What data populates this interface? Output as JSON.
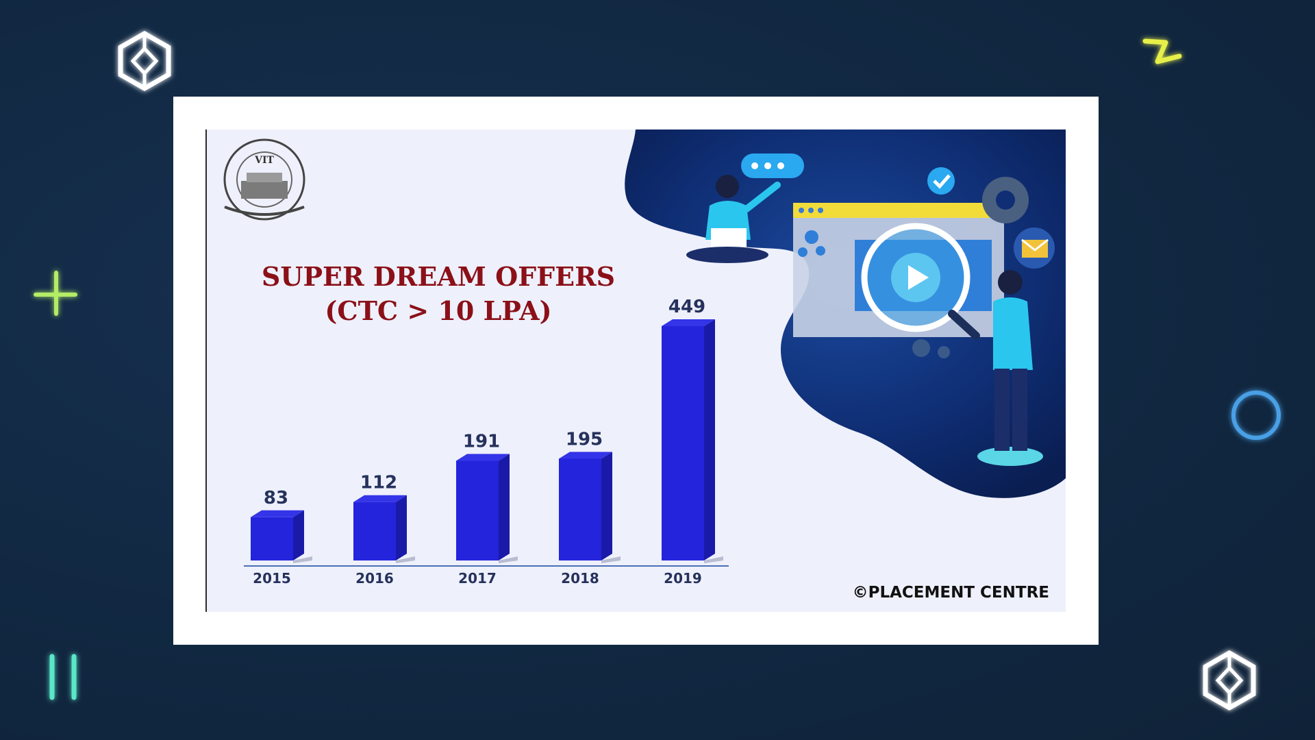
{
  "slide": {
    "logo_text": "VIT",
    "copyright": "©PLACEMENT CENTRE"
  },
  "chart_data": {
    "type": "bar",
    "title": "SUPER DREAM OFFERS",
    "subtitle": "(CTC > 10 LPA)",
    "categories": [
      "2015",
      "2016",
      "2017",
      "2018",
      "2019"
    ],
    "values": [
      83,
      112,
      191,
      195,
      449
    ],
    "xlabel": "",
    "ylabel": "",
    "ylim": [
      0,
      449
    ],
    "grid": false,
    "bar_color": "#2424dc",
    "bar_side_color": "#1a1aa8",
    "bar_top_color": "#3434e8"
  },
  "colors": {
    "accent_cyan": "#5ae6c8",
    "accent_yellow": "#e6f04a",
    "accent_blue": "#4aa0e6"
  },
  "icons": [
    "cube-icon",
    "zigzag-icon",
    "plus-icon",
    "circle-icon",
    "pause-icon",
    "play-icon",
    "gear-icon",
    "check-icon",
    "mail-icon"
  ]
}
